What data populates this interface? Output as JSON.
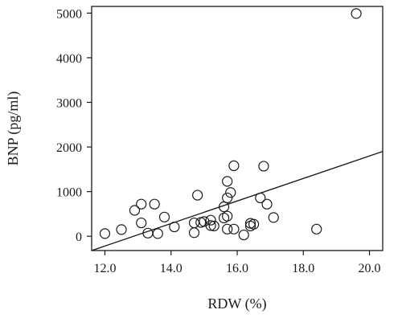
{
  "chart_data": {
    "type": "scatter",
    "xlabel": "RDW (%)",
    "ylabel": "BNP (pg/ml)",
    "xlim": [
      11.6,
      20.4
    ],
    "ylim": [
      -320,
      5150
    ],
    "x_ticks": [
      12.0,
      14.0,
      16.0,
      18.0,
      20.0
    ],
    "x_tick_labels": [
      "12.0",
      "14.0",
      "16.0",
      "18.0",
      "20.0"
    ],
    "y_ticks": [
      0,
      1000,
      2000,
      3000,
      4000,
      5000
    ],
    "y_tick_labels": [
      "0",
      "1000",
      "2000",
      "3000",
      "4000",
      "5000"
    ],
    "grid": false,
    "marker": "open-circle",
    "points": [
      {
        "x": 12.0,
        "y": 60
      },
      {
        "x": 12.5,
        "y": 150
      },
      {
        "x": 12.9,
        "y": 580
      },
      {
        "x": 13.1,
        "y": 720
      },
      {
        "x": 13.1,
        "y": 300
      },
      {
        "x": 13.3,
        "y": 70
      },
      {
        "x": 13.5,
        "y": 720
      },
      {
        "x": 13.6,
        "y": 60
      },
      {
        "x": 13.8,
        "y": 430
      },
      {
        "x": 14.1,
        "y": 210
      },
      {
        "x": 14.7,
        "y": 80
      },
      {
        "x": 14.7,
        "y": 300
      },
      {
        "x": 14.8,
        "y": 920
      },
      {
        "x": 14.9,
        "y": 310
      },
      {
        "x": 15.0,
        "y": 330
      },
      {
        "x": 15.2,
        "y": 360
      },
      {
        "x": 15.2,
        "y": 240
      },
      {
        "x": 15.3,
        "y": 230
      },
      {
        "x": 15.6,
        "y": 660
      },
      {
        "x": 15.6,
        "y": 410
      },
      {
        "x": 15.7,
        "y": 1230
      },
      {
        "x": 15.7,
        "y": 860
      },
      {
        "x": 15.7,
        "y": 450
      },
      {
        "x": 15.7,
        "y": 160
      },
      {
        "x": 15.8,
        "y": 980
      },
      {
        "x": 15.9,
        "y": 1580
      },
      {
        "x": 15.9,
        "y": 160
      },
      {
        "x": 16.2,
        "y": 30
      },
      {
        "x": 16.4,
        "y": 290
      },
      {
        "x": 16.4,
        "y": 230
      },
      {
        "x": 16.5,
        "y": 270
      },
      {
        "x": 16.7,
        "y": 860
      },
      {
        "x": 16.8,
        "y": 1570
      },
      {
        "x": 16.9,
        "y": 720
      },
      {
        "x": 17.1,
        "y": 420
      },
      {
        "x": 18.4,
        "y": 160
      },
      {
        "x": 19.6,
        "y": 4990
      }
    ],
    "trend_line": {
      "x": [
        11.6,
        20.4
      ],
      "y": [
        -320,
        1900
      ]
    }
  }
}
